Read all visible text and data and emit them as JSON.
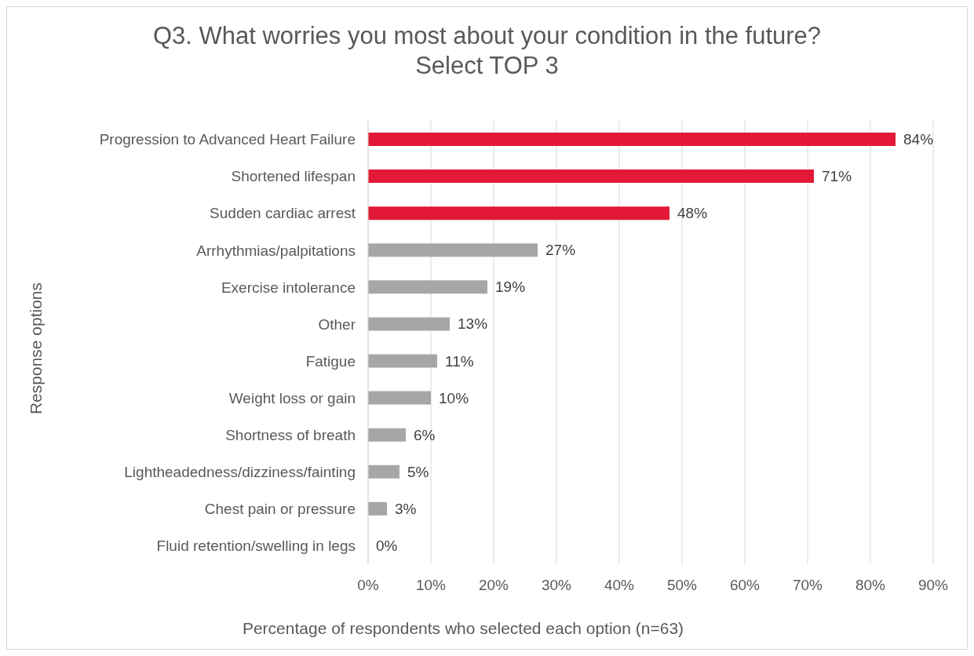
{
  "chart_data": {
    "type": "bar",
    "orientation": "horizontal",
    "title": "Q3. What worries you most about your condition in the future?\nSelect TOP 3",
    "xlabel": "Percentage of respondents who selected each option (n=63)",
    "ylabel": "Response options",
    "categories": [
      "Progression to Advanced Heart Failure",
      "Shortened lifespan",
      "Sudden cardiac arrest",
      "Arrhythmias/palpitations",
      "Exercise intolerance",
      "Other",
      "Fatigue",
      "Weight loss or gain",
      "Shortness of breath",
      "Lightheadedness/dizziness/fainting",
      "Chest pain or pressure",
      "Fluid retention/swelling in legs"
    ],
    "values": [
      84,
      71,
      48,
      27,
      19,
      13,
      11,
      10,
      6,
      5,
      3,
      0
    ],
    "colors": [
      "#e31937",
      "#e31937",
      "#e31937",
      "#a6a6a6",
      "#a6a6a6",
      "#a6a6a6",
      "#a6a6a6",
      "#a6a6a6",
      "#a6a6a6",
      "#a6a6a6",
      "#a6a6a6",
      "#a6a6a6"
    ],
    "value_labels": [
      "84%",
      "71%",
      "48%",
      "27%",
      "19%",
      "13%",
      "11%",
      "10%",
      "6%",
      "5%",
      "3%",
      "0%"
    ],
    "xlim": [
      0,
      90
    ],
    "xticks": [
      {
        "value": 0,
        "label": "0%"
      },
      {
        "value": 10,
        "label": "10%"
      },
      {
        "value": 20,
        "label": "20%"
      },
      {
        "value": 30,
        "label": "30%"
      },
      {
        "value": 40,
        "label": "40%"
      },
      {
        "value": 50,
        "label": "50%"
      },
      {
        "value": 60,
        "label": "60%"
      },
      {
        "value": 70,
        "label": "70%"
      },
      {
        "value": 80,
        "label": "80%"
      },
      {
        "value": 90,
        "label": "90%"
      }
    ],
    "grid": "x",
    "legend": false
  }
}
